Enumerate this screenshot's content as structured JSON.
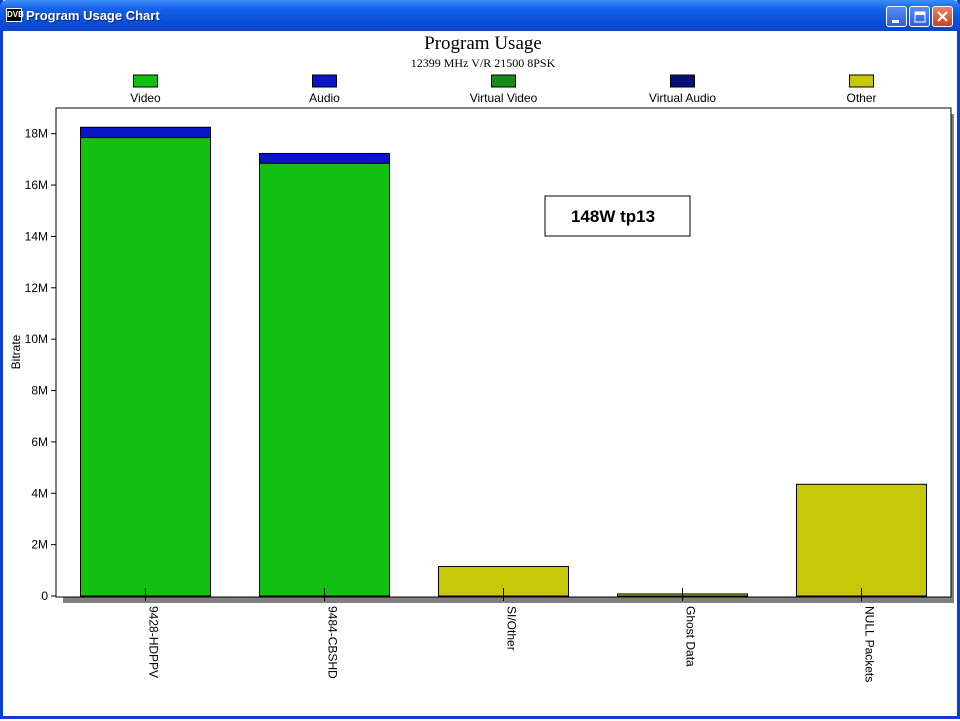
{
  "window": {
    "title": "Program Usage Chart",
    "icon_label": "DVB"
  },
  "chart_data": {
    "type": "bar",
    "stacked": true,
    "title": "Program Usage",
    "subtitle": "12399 MHz V/R 21500 8PSK",
    "annotation": "148W tp13",
    "ylabel": "Bitrate",
    "xlabel": "",
    "ylim": [
      0,
      19000000
    ],
    "yticks": [
      0,
      2000000,
      4000000,
      6000000,
      8000000,
      10000000,
      12000000,
      14000000,
      16000000,
      18000000
    ],
    "ytick_labels": [
      "0",
      "2M",
      "4M",
      "6M",
      "8M",
      "10M",
      "12M",
      "14M",
      "16M",
      "18M"
    ],
    "grid": false,
    "legend_position": "top",
    "categories": [
      "9428-HDPPV",
      "9484-CBSHD",
      "SI/Other",
      "Ghost Data",
      "NULL Packets"
    ],
    "series": [
      {
        "name": "Video",
        "color": "#11c011",
        "values": [
          17850000,
          16850000,
          0,
          0,
          0
        ]
      },
      {
        "name": "Audio",
        "color": "#0a14c8",
        "values": [
          400000,
          380000,
          0,
          0,
          0
        ]
      },
      {
        "name": "Virtual Video",
        "color": "#178a17",
        "values": [
          0,
          0,
          0,
          0,
          0
        ]
      },
      {
        "name": "Virtual Audio",
        "color": "#061078",
        "values": [
          0,
          0,
          0,
          0,
          0
        ]
      },
      {
        "name": "Other",
        "color": "#c8c80a",
        "values": [
          0,
          0,
          1150000,
          80000,
          4350000
        ]
      }
    ]
  }
}
